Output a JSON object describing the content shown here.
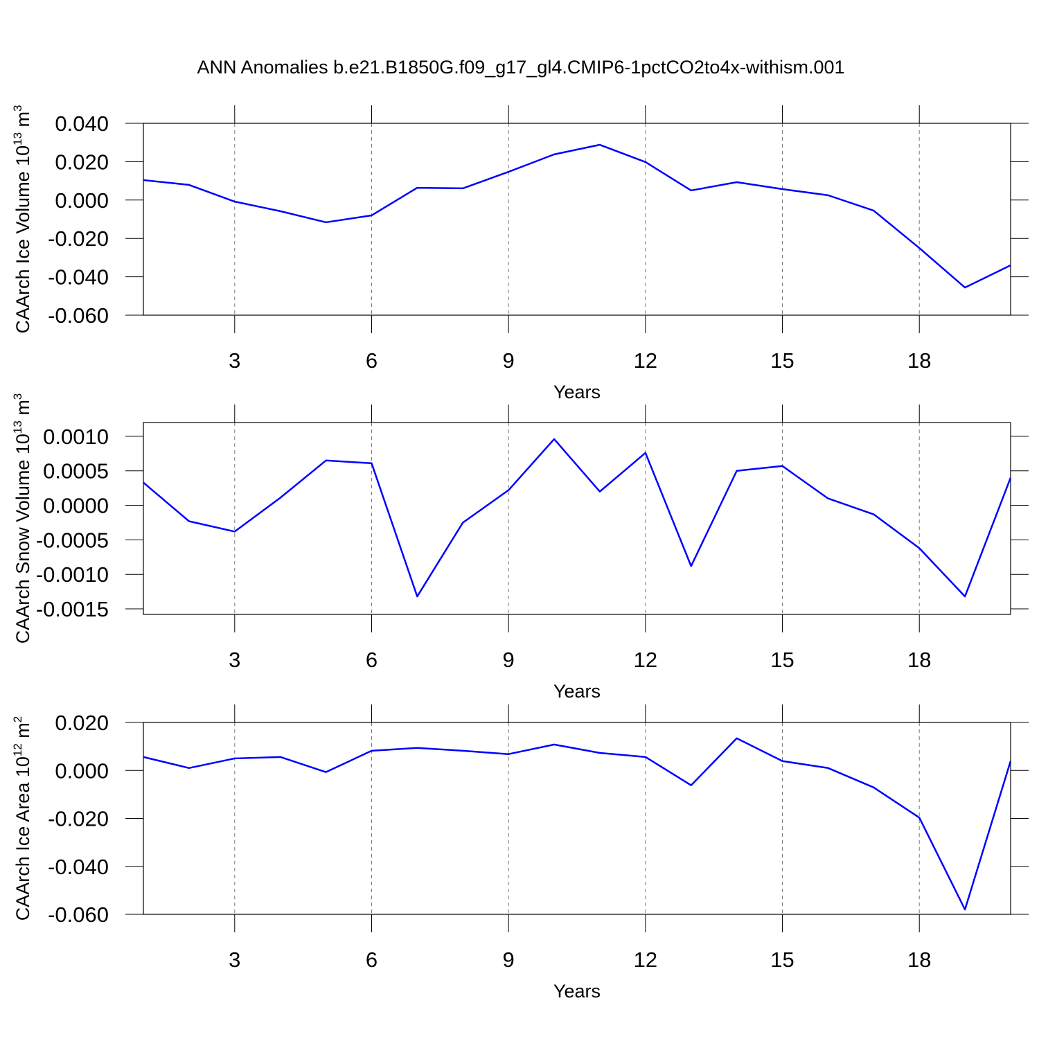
{
  "chart_data": [
    {
      "type": "line",
      "title": "ANN Anomalies b.e21.B1850G.f09_g17_gl4.CMIP6-1pctCO2to4x-withism.001",
      "ylabel": {
        "text": "CAArch Ice Volume 10",
        "power": "13",
        "unit": " m",
        "unit_power": "3"
      },
      "xlabel": "Years",
      "x": [
        1,
        2,
        3,
        4,
        5,
        6,
        7,
        8,
        9,
        10,
        11,
        12,
        13,
        14,
        15,
        16,
        17,
        18,
        19,
        20
      ],
      "series": [
        {
          "color": "#0000ff",
          "values": [
            0.0104,
            0.0079,
            -0.0008,
            -0.0058,
            -0.0116,
            -0.008,
            0.0064,
            0.0061,
            0.0147,
            0.0238,
            0.0288,
            0.0198,
            0.005,
            0.0093,
            0.0057,
            0.0025,
            -0.0055,
            -0.025,
            -0.0456,
            -0.034
          ]
        }
      ],
      "xlim": [
        1,
        20
      ],
      "xticks": [
        3,
        6,
        9,
        12,
        15,
        18
      ],
      "xgrid": true,
      "ylim": [
        -0.06,
        0.04
      ],
      "yticks": [
        {
          "value": -0.06,
          "label": "-0.060"
        },
        {
          "value": -0.04,
          "label": "-0.040"
        },
        {
          "value": -0.02,
          "label": "-0.020"
        },
        {
          "value": 0,
          "label": "0.000"
        },
        {
          "value": 0.02,
          "label": "0.020"
        },
        {
          "value": 0.04,
          "label": "0.040"
        }
      ]
    },
    {
      "type": "line",
      "ylabel": {
        "text": "CAArch Snow Volume 10",
        "power": "13",
        "unit": " m",
        "unit_power": "3"
      },
      "xlabel": "Years",
      "x": [
        1,
        2,
        3,
        4,
        5,
        6,
        7,
        8,
        9,
        10,
        11,
        12,
        13,
        14,
        15,
        16,
        17,
        18,
        19,
        20
      ],
      "series": [
        {
          "color": "#0000ff",
          "values": [
            0.00033,
            -0.00023,
            -0.00038,
            0.00011,
            0.00065,
            0.00061,
            -0.00132,
            -0.00025,
            0.00022,
            0.00096,
            0.0002,
            0.00076,
            -0.00088,
            0.0005,
            0.00057,
            0.0001,
            -0.00013,
            -0.00062,
            -0.00132,
            0.0004
          ]
        }
      ],
      "xlim": [
        1,
        20
      ],
      "xticks": [
        3,
        6,
        9,
        12,
        15,
        18
      ],
      "xgrid": true,
      "ylim": [
        -0.00158,
        0.0012
      ],
      "yticks": [
        {
          "value": -0.0015,
          "label": "-0.0015"
        },
        {
          "value": -0.001,
          "label": "-0.0010"
        },
        {
          "value": -0.0005,
          "label": "-0.0005"
        },
        {
          "value": 0,
          "label": "0.0000"
        },
        {
          "value": 0.0005,
          "label": "0.0005"
        },
        {
          "value": 0.001,
          "label": "0.0010"
        }
      ]
    },
    {
      "type": "line",
      "ylabel": {
        "text": "CAArch Ice Area 10",
        "power": "12",
        "unit": " m",
        "unit_power": "2"
      },
      "xlabel": "Years",
      "x": [
        1,
        2,
        3,
        4,
        5,
        6,
        7,
        8,
        9,
        10,
        11,
        12,
        13,
        14,
        15,
        16,
        17,
        18,
        19,
        20
      ],
      "series": [
        {
          "color": "#0000ff",
          "values": [
            0.0056,
            0.001,
            0.005,
            0.0056,
            -0.0007,
            0.0082,
            0.0094,
            0.0082,
            0.0068,
            0.0108,
            0.0073,
            0.0056,
            -0.0062,
            0.0134,
            0.0039,
            0.001,
            -0.0071,
            -0.0197,
            -0.058,
            0.0039
          ]
        }
      ],
      "xlim": [
        1,
        20
      ],
      "xticks": [
        3,
        6,
        9,
        12,
        15,
        18
      ],
      "xgrid": true,
      "ylim": [
        -0.06,
        0.02
      ],
      "yticks": [
        {
          "value": -0.06,
          "label": "-0.060"
        },
        {
          "value": -0.04,
          "label": "-0.040"
        },
        {
          "value": -0.02,
          "label": "-0.020"
        },
        {
          "value": 0,
          "label": "0.000"
        },
        {
          "value": 0.02,
          "label": "0.020"
        }
      ]
    }
  ]
}
